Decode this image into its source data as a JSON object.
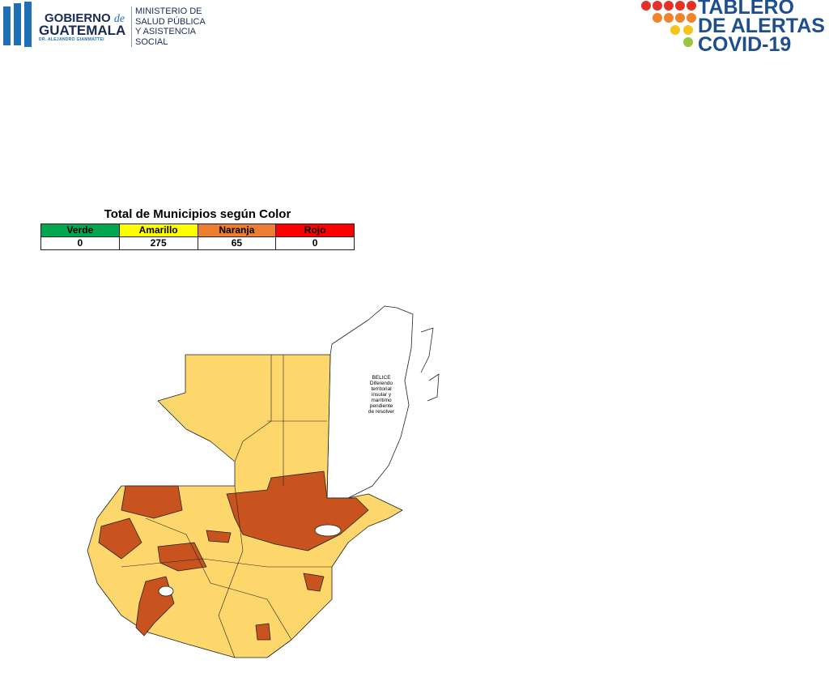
{
  "header": {
    "left_logo": {
      "line1": "GOBIERNO",
      "de": "de",
      "line2": "GUATEMALA",
      "sub": "DR. ALEJANDRO GIAMMATTEI",
      "ministry": [
        "MINISTERIO DE",
        "SALUD PÚBLICA",
        "Y ASISTENCIA",
        "SOCIAL"
      ]
    },
    "right_logo": {
      "lines": [
        "TABLERO",
        "DE ALERTAS",
        "COVID-19"
      ]
    }
  },
  "table": {
    "title": "Total de Municipios según Color",
    "headers": [
      "Verde",
      "Amarillo",
      "Naranja",
      "Rojo"
    ],
    "rows": [
      [
        0,
        275,
        65,
        0
      ]
    ]
  },
  "map": {
    "belize_label": [
      "BELICE",
      "Diferendo",
      "territorial",
      "insular y",
      "marítimo",
      "pendiente",
      "de resolver"
    ]
  }
}
